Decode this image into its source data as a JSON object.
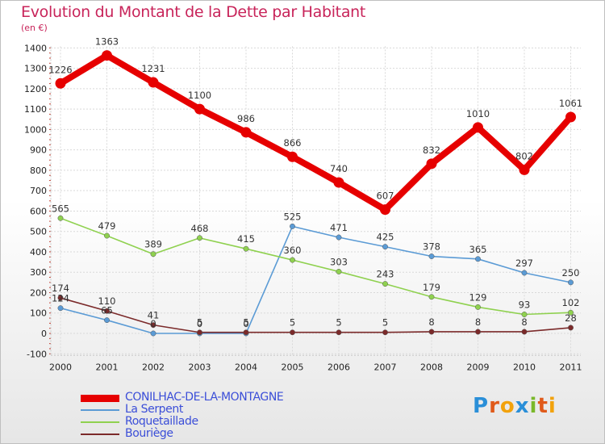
{
  "title": "Evolution du Montant de la Dette par Habitant",
  "subtitle": "(en €)",
  "logo": {
    "text": "Proxiti",
    "letters": [
      "P",
      "r",
      "o",
      "x",
      "i",
      "t",
      "i"
    ],
    "colors": [
      "#2a8fd8",
      "#e05a1a",
      "#f2a20c",
      "#2a8fd8",
      "#7ab82a",
      "#e05a1a",
      "#f2a20c"
    ]
  },
  "chart_data": {
    "type": "line",
    "title": "Evolution du Montant de la Dette par Habitant",
    "ylabel": "(en €)",
    "xlabel": "",
    "ylim": [
      -100,
      1400
    ],
    "yticks": [
      "-100",
      "0",
      "100",
      "200",
      "300",
      "400",
      "500",
      "600",
      "700",
      "800",
      "900",
      "1000",
      "1100",
      "1200",
      "1300",
      "1400"
    ],
    "yticks_values": [
      -100,
      0,
      100,
      200,
      300,
      400,
      500,
      600,
      700,
      800,
      900,
      1000,
      1100,
      1200,
      1300,
      1400
    ],
    "grid": true,
    "categories": [
      "2000",
      "2001",
      "2002",
      "2003",
      "2004",
      "2005",
      "2006",
      "2007",
      "2008",
      "2009",
      "2010",
      "2011"
    ],
    "series": [
      {
        "name": "CONILHAC-DE-LA-MONTAGNE",
        "color": "#e60000",
        "bold": true,
        "values": [
          1226,
          1363,
          1231,
          1100,
          986,
          866,
          740,
          607,
          832,
          1010,
          802,
          1061
        ],
        "labels": [
          "1226",
          "1363",
          "1231",
          "1100",
          "986",
          "866",
          "740",
          "607",
          "832",
          "1010",
          "802",
          "1061"
        ]
      },
      {
        "name": "La Serpent",
        "color": "#5b9bd5",
        "bold": false,
        "values": [
          124,
          65,
          0,
          0,
          0,
          525,
          471,
          425,
          378,
          365,
          297,
          250
        ],
        "labels": [
          "124",
          "65",
          "0",
          "0",
          "0",
          "525",
          "471",
          "425",
          "378",
          "365",
          "297",
          "250"
        ]
      },
      {
        "name": "Roquetaillade",
        "color": "#8fd14f",
        "bold": false,
        "values": [
          565,
          479,
          389,
          468,
          415,
          360,
          303,
          243,
          179,
          129,
          93,
          102
        ],
        "labels": [
          "565",
          "479",
          "389",
          "468",
          "415",
          "360",
          "303",
          "243",
          "179",
          "129",
          "93",
          "102"
        ]
      },
      {
        "name": "Bouriège",
        "color": "#7b2a2a",
        "bold": false,
        "values": [
          174,
          110,
          41,
          5,
          5,
          5,
          5,
          5,
          8,
          8,
          8,
          28
        ],
        "labels": [
          "174",
          "110",
          "41",
          "5",
          "5",
          "5",
          "5",
          "5",
          "8",
          "8",
          "8",
          "28"
        ]
      }
    ],
    "legend_position": "bottom-left"
  }
}
